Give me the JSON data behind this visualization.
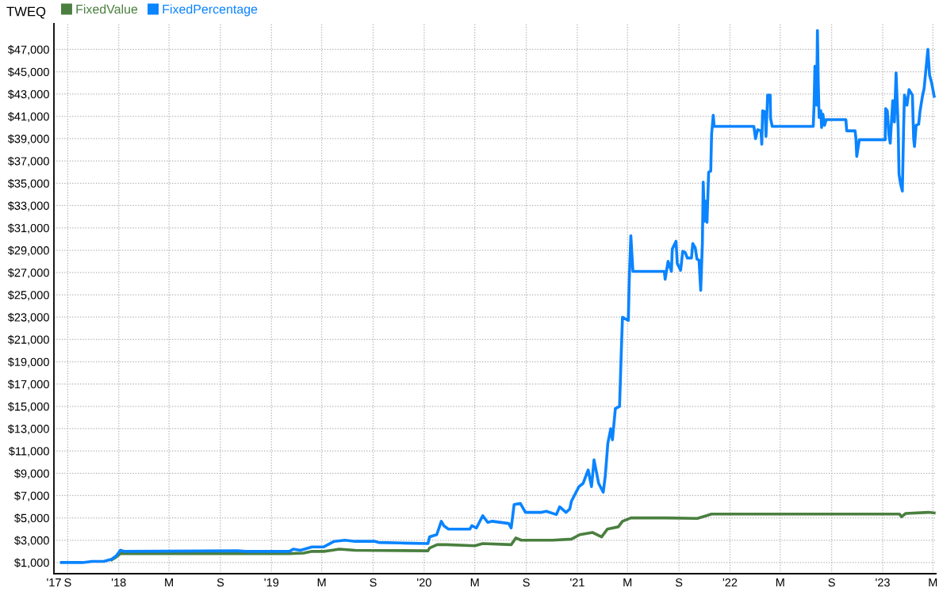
{
  "chart_data": {
    "type": "line",
    "title": "TWEQ",
    "xlim": [
      "2017-07-30",
      "2023-05-08"
    ],
    "xticks": [
      {
        "value": "2017-07-30",
        "label": "'17"
      },
      {
        "value": "2017-09-01",
        "label": "S"
      },
      {
        "value": "2018-01-01",
        "label": "'18"
      },
      {
        "value": "2018-05-01",
        "label": "M"
      },
      {
        "value": "2018-09-01",
        "label": "S"
      },
      {
        "value": "2019-01-01",
        "label": "'19"
      },
      {
        "value": "2019-05-01",
        "label": "M"
      },
      {
        "value": "2019-09-01",
        "label": "S"
      },
      {
        "value": "2020-01-01",
        "label": "'20"
      },
      {
        "value": "2020-05-01",
        "label": "M"
      },
      {
        "value": "2020-09-01",
        "label": "S"
      },
      {
        "value": "2021-01-01",
        "label": "'21"
      },
      {
        "value": "2021-05-01",
        "label": "M"
      },
      {
        "value": "2021-09-01",
        "label": "S"
      },
      {
        "value": "2022-01-01",
        "label": "'22"
      },
      {
        "value": "2022-05-01",
        "label": "M"
      },
      {
        "value": "2022-09-01",
        "label": "S"
      },
      {
        "value": "2023-01-01",
        "label": "'23"
      },
      {
        "value": "2023-05-01",
        "label": "M"
      }
    ],
    "ylim": [
      0,
      49300
    ],
    "yticks": [
      {
        "value": 1000,
        "label": "$1,000"
      },
      {
        "value": 3000,
        "label": "$3,000"
      },
      {
        "value": 5000,
        "label": "$5,000"
      },
      {
        "value": 7000,
        "label": "$7,000"
      },
      {
        "value": 9000,
        "label": "$9,000"
      },
      {
        "value": 11000,
        "label": "$11,000"
      },
      {
        "value": 13000,
        "label": "$13,000"
      },
      {
        "value": 15000,
        "label": "$15,000"
      },
      {
        "value": 17000,
        "label": "$17,000"
      },
      {
        "value": 19000,
        "label": "$19,000"
      },
      {
        "value": 21000,
        "label": "$21,000"
      },
      {
        "value": 23000,
        "label": "$23,000"
      },
      {
        "value": 25000,
        "label": "$25,000"
      },
      {
        "value": 27000,
        "label": "$27,000"
      },
      {
        "value": 29000,
        "label": "$29,000"
      },
      {
        "value": 31000,
        "label": "$31,000"
      },
      {
        "value": 33000,
        "label": "$33,000"
      },
      {
        "value": 35000,
        "label": "$35,000"
      },
      {
        "value": 37000,
        "label": "$37,000"
      },
      {
        "value": 39000,
        "label": "$39,000"
      },
      {
        "value": 41000,
        "label": "$41,000"
      },
      {
        "value": 43000,
        "label": "$43,000"
      },
      {
        "value": 45000,
        "label": "$45,000"
      },
      {
        "value": 47000,
        "label": "$47,000"
      }
    ],
    "grid": true,
    "legend": "top left",
    "marker": "none",
    "line_style": "solid",
    "series": [
      {
        "name": "FixedValue",
        "color": "#4a7f3f",
        "x": [
          "2017-12-15",
          "2017-12-26",
          "2018-01-05",
          "2019-02-13",
          "2019-03-19",
          "2019-04-08",
          "2019-05-06",
          "2019-05-25",
          "2019-06-12",
          "2019-07-20",
          "2020-01-10",
          "2020-01-14",
          "2020-02-01",
          "2020-02-23",
          "2020-05-01",
          "2020-05-20",
          "2020-07-27",
          "2020-08-07",
          "2020-08-20",
          "2020-11-03",
          "2020-12-18",
          "2021-01-07",
          "2021-02-06",
          "2021-02-28",
          "2021-03-14",
          "2021-04-09",
          "2021-04-19",
          "2021-05-09",
          "2021-07-30",
          "2021-10-15",
          "2021-11-06",
          "2021-11-18",
          "2023-02-10",
          "2023-02-15",
          "2023-02-25",
          "2023-04-20",
          "2023-05-04"
        ],
        "values": [
          1250,
          1500,
          1800,
          1800,
          1850,
          2000,
          2000,
          2100,
          2200,
          2100,
          2050,
          2300,
          2600,
          2600,
          2500,
          2700,
          2600,
          3200,
          3000,
          3000,
          3100,
          3500,
          3700,
          3300,
          4000,
          4200,
          4700,
          5000,
          5000,
          4950,
          5200,
          5350,
          5350,
          5100,
          5400,
          5500,
          5450
        ]
      },
      {
        "name": "FixedPercentage",
        "color": "#0a84ff",
        "x": [
          "2017-08-17",
          "2017-10-07",
          "2017-10-29",
          "2017-11-26",
          "2017-12-15",
          "2017-12-26",
          "2018-01-05",
          "2018-01-14",
          "2018-10-12",
          "2018-10-31",
          "2019-02-13",
          "2019-02-22",
          "2019-03-11",
          "2019-04-08",
          "2019-05-06",
          "2019-05-31",
          "2019-06-26",
          "2019-07-20",
          "2019-09-05",
          "2019-09-14",
          "2019-11-08",
          "2020-01-10",
          "2020-01-14",
          "2020-01-31",
          "2020-02-11",
          "2020-02-17",
          "2020-02-28",
          "2020-04-19",
          "2020-04-24",
          "2020-05-05",
          "2020-05-20",
          "2020-06-01",
          "2020-06-12",
          "2020-07-21",
          "2020-07-27",
          "2020-08-03",
          "2020-08-18",
          "2020-08-30",
          "2020-10-08",
          "2020-10-19",
          "2020-11-12",
          "2020-11-20",
          "2020-12-05",
          "2020-12-14",
          "2020-12-18",
          "2021-01-05",
          "2021-01-15",
          "2021-01-27",
          "2021-02-04",
          "2021-02-10",
          "2021-02-21",
          "2021-03-04",
          "2021-03-09",
          "2021-03-15",
          "2021-03-22",
          "2021-03-26",
          "2021-04-02",
          "2021-04-12",
          "2021-04-16",
          "2021-04-19",
          "2021-05-03",
          "2021-05-05",
          "2021-05-09",
          "2021-05-14",
          "2021-07-28",
          "2021-07-30",
          "2021-08-06",
          "2021-08-14",
          "2021-08-16",
          "2021-08-25",
          "2021-08-28",
          "2021-09-05",
          "2021-09-10",
          "2021-09-16",
          "2021-09-21",
          "2021-10-01",
          "2021-10-04",
          "2021-10-10",
          "2021-10-14",
          "2021-10-19",
          "2021-10-23",
          "2021-10-27",
          "2021-10-29",
          "2021-11-01",
          "2021-11-03",
          "2021-11-07",
          "2021-11-11",
          "2021-11-16",
          "2021-11-18",
          "2021-11-22",
          "2021-11-24",
          "2022-02-27",
          "2022-03-03",
          "2022-03-08",
          "2022-03-16",
          "2022-03-18",
          "2022-03-20",
          "2022-03-26",
          "2022-03-28",
          "2022-04-01",
          "2022-04-07",
          "2022-04-08",
          "2022-04-12",
          "2022-07-19",
          "2022-07-21",
          "2022-07-23",
          "2022-07-27",
          "2022-07-29",
          "2022-07-31",
          "2022-08-02",
          "2022-08-06",
          "2022-08-08",
          "2022-08-11",
          "2022-08-15",
          "2022-08-19",
          "2022-10-05",
          "2022-10-07",
          "2022-10-27",
          "2022-10-29",
          "2022-10-31",
          "2022-11-06",
          "2023-01-07",
          "2023-01-08",
          "2023-01-12",
          "2023-01-16",
          "2023-01-19",
          "2023-01-25",
          "2023-01-29",
          "2023-02-02",
          "2023-02-07",
          "2023-02-09",
          "2023-02-13",
          "2023-02-17",
          "2023-02-20",
          "2023-02-22",
          "2023-02-28",
          "2023-03-05",
          "2023-03-13",
          "2023-03-16",
          "2023-03-18",
          "2023-03-22",
          "2023-03-28",
          "2023-03-31",
          "2023-04-06",
          "2023-04-10",
          "2023-04-19",
          "2023-04-23",
          "2023-04-28",
          "2023-05-04"
        ],
        "values": [
          1000,
          1000,
          1100,
          1100,
          1300,
          1600,
          2100,
          2000,
          2050,
          2000,
          2000,
          2200,
          2100,
          2400,
          2400,
          2900,
          3000,
          2900,
          2900,
          2800,
          2750,
          2700,
          3300,
          3500,
          4700,
          4300,
          4000,
          4000,
          4300,
          4100,
          5200,
          4600,
          4700,
          4500,
          4100,
          6200,
          6300,
          5500,
          5500,
          5600,
          5300,
          6000,
          5500,
          5800,
          6500,
          7800,
          8100,
          9300,
          7800,
          10200,
          8100,
          7300,
          8800,
          11700,
          13000,
          12000,
          14800,
          15000,
          19700,
          23000,
          22700,
          26100,
          30300,
          27100,
          27100,
          26400,
          28000,
          27100,
          29100,
          29800,
          27800,
          27200,
          28900,
          28800,
          28300,
          28300,
          29600,
          29200,
          28200,
          28100,
          25400,
          29600,
          35100,
          31600,
          33400,
          31500,
          36000,
          36100,
          39400,
          41100,
          40100,
          40100,
          39000,
          39800,
          39700,
          38500,
          41500,
          41400,
          39200,
          42900,
          42900,
          40800,
          40100,
          40100,
          42000,
          45500,
          42000,
          48700,
          44000,
          40900,
          41500,
          40000,
          41200,
          40200,
          40700,
          40700,
          39700,
          39700,
          39000,
          37400,
          38900,
          38900,
          41700,
          41500,
          39300,
          38600,
          42400,
          40500,
          44900,
          40000,
          35800,
          34900,
          34300,
          40000,
          42900,
          42000,
          43400,
          42900,
          39000,
          38300,
          40200,
          40300,
          41400,
          42800,
          43500,
          47000,
          44700,
          44000,
          42800
        ]
      }
    ]
  }
}
